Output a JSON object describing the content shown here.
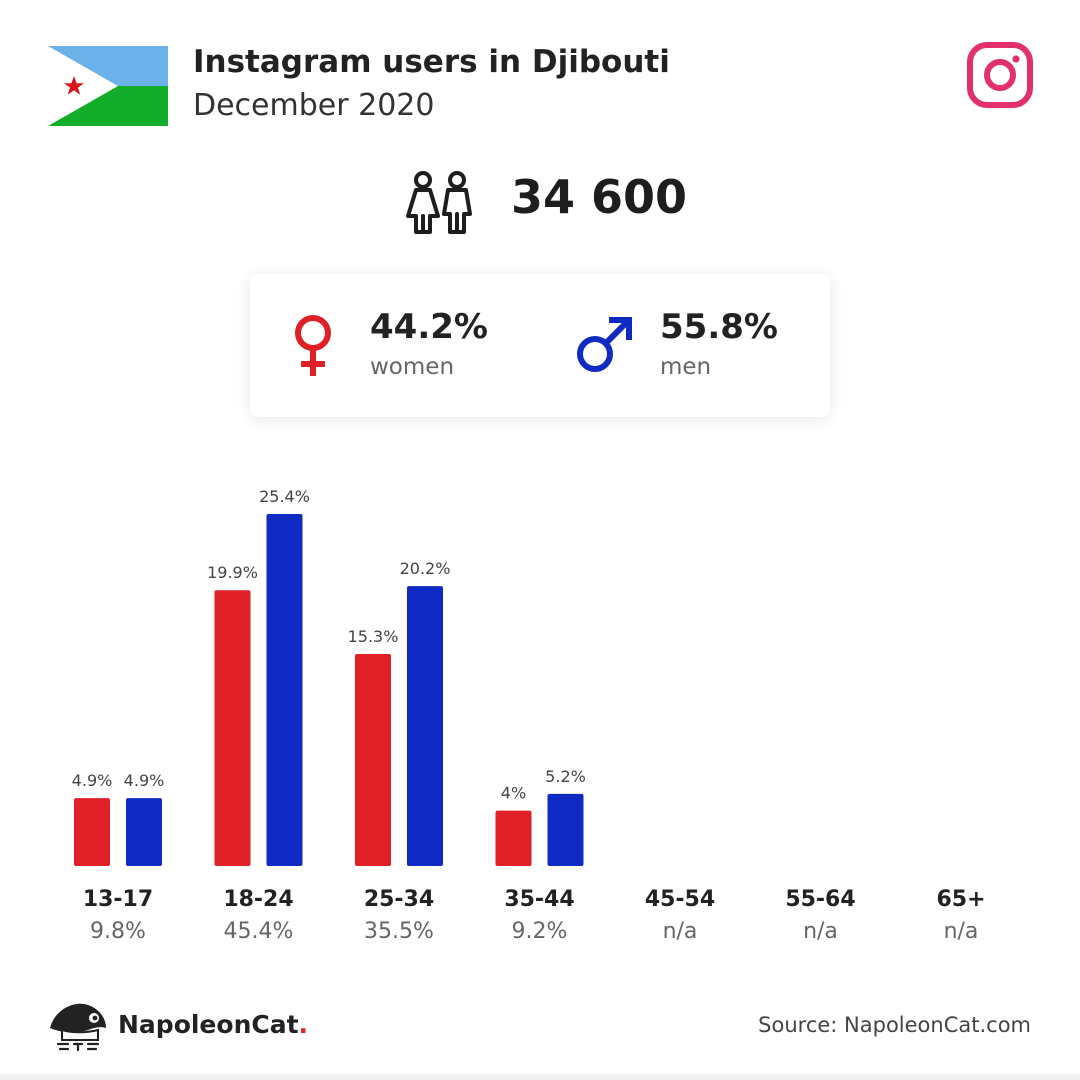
{
  "header": {
    "title": "Instagram users in Djibouti",
    "subtitle": "December 2020"
  },
  "total": {
    "value": "34 600"
  },
  "gender": {
    "women": {
      "pct": "44.2%",
      "label": "women",
      "color": "#e02027"
    },
    "men": {
      "pct": "55.8%",
      "label": "men",
      "color": "#0f2bc4"
    }
  },
  "icons": {
    "flag": "djibouti-flag-icon",
    "instagram": "instagram-icon",
    "people": "people-icon",
    "female": "female-symbol-icon",
    "male": "male-symbol-icon",
    "logo": "napoleoncat-logo-icon"
  },
  "colors": {
    "women": "#e02027",
    "men": "#0f2bc4",
    "instagram": "#e1306c",
    "flag_blue": "#6ab2e7",
    "flag_green": "#12ad2b",
    "flag_star": "#d7141a"
  },
  "chart_data": {
    "type": "bar",
    "categories": [
      "13-17",
      "18-24",
      "25-34",
      "35-44",
      "45-54",
      "55-64",
      "65+"
    ],
    "totals": [
      "9.8%",
      "45.4%",
      "35.5%",
      "9.2%",
      "n/a",
      "n/a",
      "n/a"
    ],
    "series": [
      {
        "values": [
          4.9,
          19.9,
          15.3,
          4.0,
          null,
          null,
          null
        ],
        "labels": [
          "4.9%",
          "19.9%",
          "15.3%",
          "4%",
          "",
          "",
          ""
        ],
        "color": "#e02027"
      },
      {
        "values": [
          4.9,
          25.4,
          20.2,
          5.2,
          null,
          null,
          null
        ],
        "labels": [
          "4.9%",
          "25.4%",
          "20.2%",
          "5.2%",
          "",
          "",
          ""
        ],
        "color": "#0f2bc4"
      }
    ],
    "title": "",
    "xlabel": "",
    "ylabel": "",
    "ylim": [
      0,
      25.4
    ],
    "grid": false
  },
  "footer": {
    "brand": "NapoleonCat",
    "brand_dot": ".",
    "source": "Source: NapoleonCat.com"
  }
}
